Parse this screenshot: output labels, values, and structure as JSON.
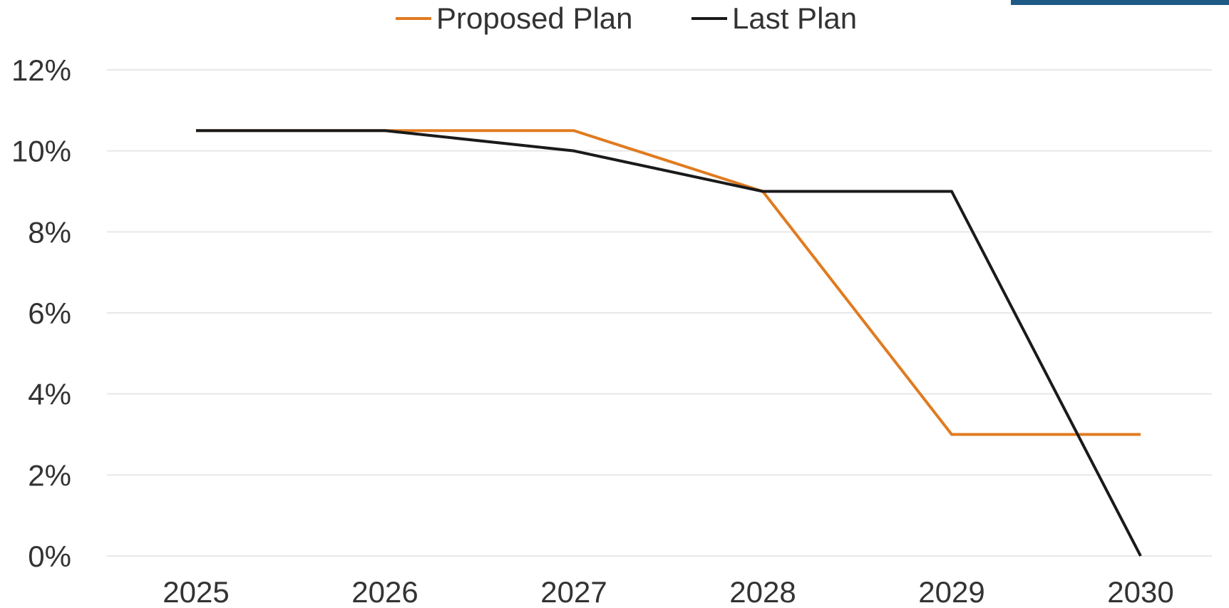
{
  "chart_data": {
    "type": "line",
    "title": "",
    "xlabel": "",
    "ylabel": "",
    "categories": [
      "2025",
      "2026",
      "2027",
      "2028",
      "2029",
      "2030"
    ],
    "series": [
      {
        "name": "Proposed Plan",
        "color": "#E07B20",
        "values": [
          10.5,
          10.5,
          10.5,
          9.0,
          3.0,
          3.0
        ]
      },
      {
        "name": "Last Plan",
        "color": "#1a1a1a",
        "values": [
          10.5,
          10.5,
          10.0,
          9.0,
          9.0,
          0.0
        ]
      }
    ],
    "ylim": [
      0,
      12
    ],
    "yticks": [
      0,
      2,
      4,
      6,
      8,
      10,
      12
    ],
    "ytick_labels": [
      "0%",
      "2%",
      "4%",
      "6%",
      "8%",
      "10%",
      "12%"
    ],
    "grid": true,
    "legend_position": "top-center"
  },
  "colors": {
    "gridline": "#e8e8e8",
    "text": "#333333",
    "corner_accent": "#1f5a86"
  }
}
